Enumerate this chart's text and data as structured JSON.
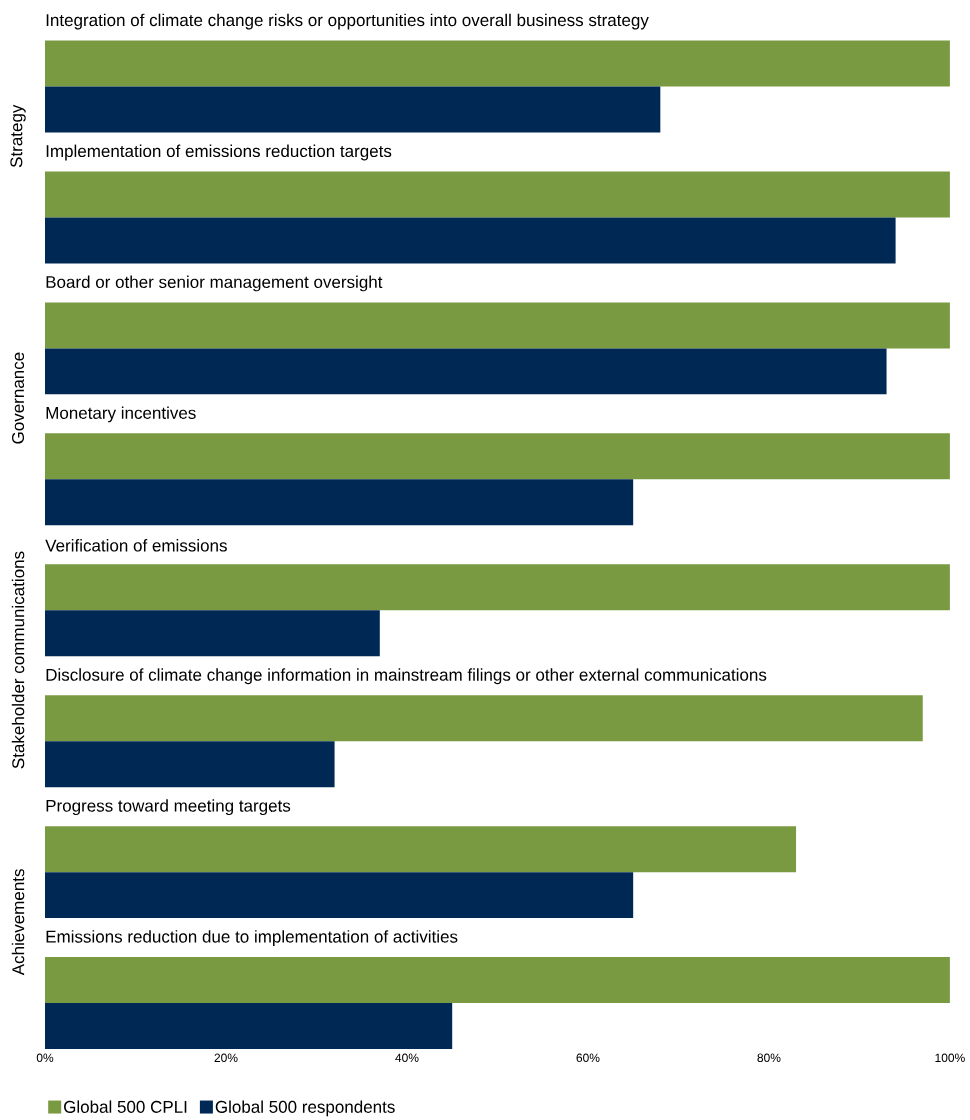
{
  "chart_data": {
    "type": "bar",
    "orientation": "horizontal",
    "categories": [
      "Integration of climate change risks or opportunities into overall business strategy",
      "Implementation of emissions reduction targets",
      "Board or other senior management oversight",
      "Monetary incentives",
      "Verification of emissions",
      "Disclosure of climate change information in mainstream filings or other external communications",
      "Progress toward meeting targets",
      "Emissions reduction due to implementation of activities"
    ],
    "series": [
      {
        "name": "Global 500 CPLI",
        "color": "#7a9a41",
        "values": [
          100,
          100,
          100,
          100,
          100,
          97,
          83,
          100
        ]
      },
      {
        "name": "Global 500 respondents",
        "color": "#002855",
        "values": [
          68,
          94,
          93,
          65,
          37,
          32,
          65,
          45
        ]
      }
    ],
    "xlim": [
      0,
      100
    ],
    "xticks": [
      {
        "value": 0,
        "label": "0%"
      },
      {
        "value": 20,
        "label": "20%"
      },
      {
        "value": 40,
        "label": "40%"
      },
      {
        "value": 60,
        "label": "60%"
      },
      {
        "value": 80,
        "label": "80%"
      },
      {
        "value": 100,
        "label": "100%"
      }
    ],
    "annotations": [
      "Strategy",
      "Governance",
      "Stakeholder communications",
      "Achievements"
    ],
    "legend": "bottom left",
    "grid": false
  }
}
